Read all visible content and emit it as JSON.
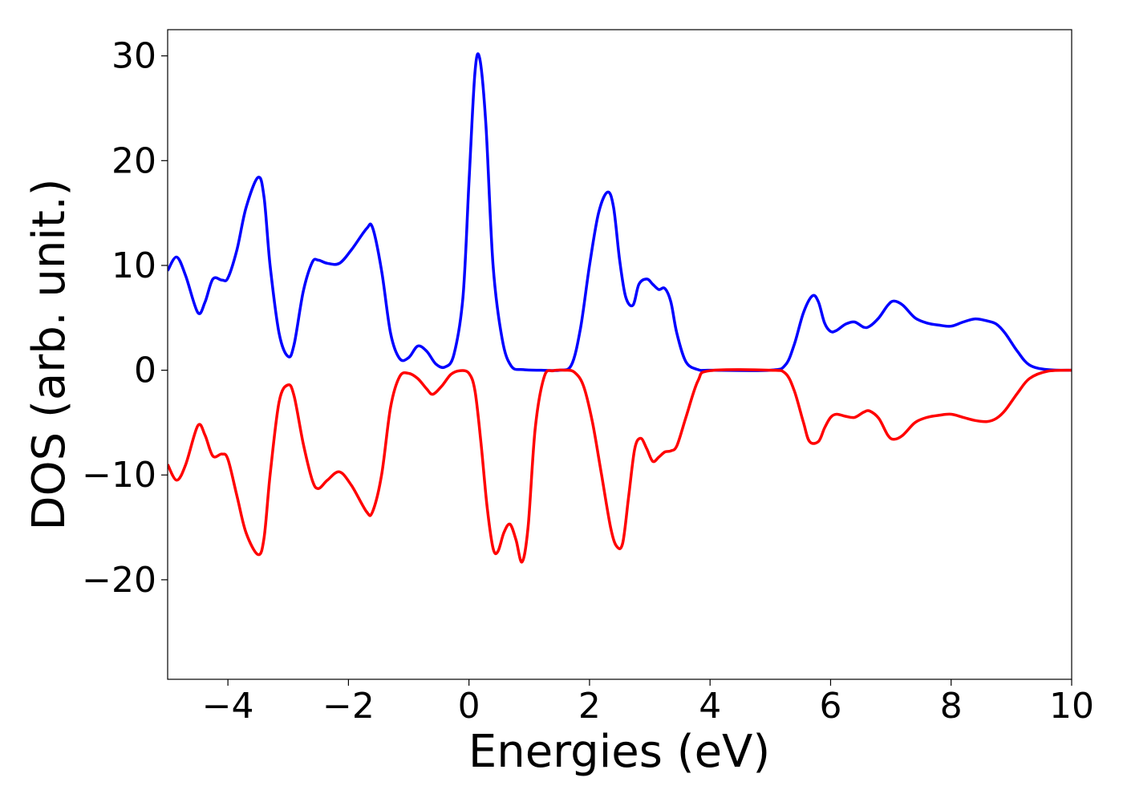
{
  "chart_data": {
    "type": "line",
    "title": "",
    "xlabel": "Energies (eV)",
    "ylabel": "DOS (arb. unit.)",
    "xlim": [
      -5,
      10
    ],
    "ylim": [
      -29.5,
      32.5
    ],
    "grid": false,
    "legend": "none",
    "x_ticks": [
      -4,
      -2,
      0,
      2,
      4,
      6,
      8,
      10
    ],
    "x_tick_labels": [
      "−4",
      "−2",
      "0",
      "2",
      "4",
      "6",
      "8",
      "10"
    ],
    "y_ticks": [
      -20,
      -10,
      0,
      10,
      20,
      30
    ],
    "y_tick_labels": [
      "−20",
      "−10",
      "0",
      "10",
      "20",
      "30"
    ],
    "series": [
      {
        "color": "#0000ff",
        "x": [
          -5.0,
          -4.85,
          -4.7,
          -4.5,
          -4.38,
          -4.25,
          -4.1,
          -4.0,
          -3.85,
          -3.7,
          -3.5,
          -3.4,
          -3.3,
          -3.15,
          -3.0,
          -2.9,
          -2.75,
          -2.6,
          -2.5,
          -2.35,
          -2.15,
          -1.95,
          -1.7,
          -1.6,
          -1.45,
          -1.3,
          -1.15,
          -1.0,
          -0.85,
          -0.7,
          -0.55,
          -0.4,
          -0.25,
          -0.1,
          0.0,
          0.1,
          0.18,
          0.28,
          0.4,
          0.55,
          0.7,
          0.9,
          1.2,
          1.5,
          1.7,
          1.85,
          2.0,
          2.15,
          2.3,
          2.4,
          2.5,
          2.6,
          2.72,
          2.82,
          2.95,
          3.05,
          3.15,
          3.25,
          3.35,
          3.45,
          3.6,
          3.8,
          4.0,
          5.0,
          5.25,
          5.4,
          5.55,
          5.7,
          5.8,
          5.9,
          6.0,
          6.1,
          6.25,
          6.4,
          6.55,
          6.65,
          6.8,
          6.95,
          7.05,
          7.2,
          7.4,
          7.6,
          7.8,
          8.0,
          8.2,
          8.4,
          8.6,
          8.75,
          8.9,
          9.1,
          9.3,
          9.6,
          10.0
        ],
        "y": [
          9.5,
          10.8,
          9.0,
          5.5,
          6.5,
          8.7,
          8.6,
          8.8,
          11.5,
          15.5,
          18.4,
          16.5,
          10.0,
          3.5,
          1.3,
          2.5,
          7.5,
          10.3,
          10.5,
          10.2,
          10.2,
          11.5,
          13.5,
          13.6,
          9.5,
          3.5,
          1.1,
          1.2,
          2.3,
          1.8,
          0.6,
          0.3,
          1.5,
          7.0,
          18.0,
          28.5,
          29.7,
          23.5,
          10.0,
          3.0,
          0.4,
          0.05,
          0.0,
          0.0,
          0.5,
          4.0,
          10.0,
          15.0,
          17.0,
          15.5,
          10.5,
          7.0,
          6.2,
          8.2,
          8.7,
          8.2,
          7.7,
          7.8,
          6.5,
          3.5,
          0.8,
          0.05,
          0.0,
          0.0,
          0.5,
          2.5,
          5.5,
          7.1,
          6.5,
          4.5,
          3.7,
          3.8,
          4.4,
          4.6,
          4.1,
          4.2,
          5.0,
          6.2,
          6.6,
          6.2,
          5.0,
          4.5,
          4.3,
          4.2,
          4.6,
          4.9,
          4.7,
          4.4,
          3.5,
          1.8,
          0.5,
          0.05,
          0.0
        ]
      },
      {
        "color": "#ff0000",
        "x": [
          -5.0,
          -4.85,
          -4.7,
          -4.5,
          -4.38,
          -4.25,
          -4.1,
          -4.0,
          -3.85,
          -3.7,
          -3.5,
          -3.4,
          -3.3,
          -3.15,
          -3.0,
          -2.9,
          -2.75,
          -2.6,
          -2.5,
          -2.35,
          -2.15,
          -1.95,
          -1.7,
          -1.6,
          -1.45,
          -1.3,
          -1.15,
          -1.0,
          -0.85,
          -0.7,
          -0.6,
          -0.45,
          -0.3,
          -0.15,
          0.0,
          0.1,
          0.2,
          0.3,
          0.4,
          0.48,
          0.58,
          0.68,
          0.78,
          0.88,
          0.98,
          1.1,
          1.25,
          1.4,
          1.6,
          1.75,
          1.9,
          2.05,
          2.2,
          2.35,
          2.45,
          2.55,
          2.65,
          2.75,
          2.85,
          2.95,
          3.05,
          3.15,
          3.25,
          3.35,
          3.45,
          3.6,
          3.8,
          4.0,
          5.0,
          5.25,
          5.4,
          5.55,
          5.65,
          5.8,
          5.9,
          6.0,
          6.1,
          6.25,
          6.4,
          6.55,
          6.65,
          6.8,
          6.95,
          7.05,
          7.2,
          7.4,
          7.6,
          7.8,
          8.0,
          8.2,
          8.4,
          8.6,
          8.75,
          8.9,
          9.1,
          9.3,
          9.6,
          10.0
        ],
        "y": [
          -9.0,
          -10.5,
          -9.0,
          -5.3,
          -6.2,
          -8.2,
          -8.0,
          -8.5,
          -12.0,
          -15.5,
          -17.6,
          -16.0,
          -10.0,
          -3.0,
          -1.4,
          -2.5,
          -7.0,
          -10.5,
          -11.3,
          -10.5,
          -9.7,
          -11.0,
          -13.5,
          -13.5,
          -10.0,
          -3.5,
          -0.6,
          -0.3,
          -0.8,
          -1.8,
          -2.3,
          -1.5,
          -0.4,
          -0.05,
          -0.3,
          -2.0,
          -7.0,
          -13.0,
          -17.0,
          -17.3,
          -15.5,
          -14.7,
          -16.2,
          -18.3,
          -15.0,
          -5.5,
          -0.6,
          -0.05,
          0.0,
          -0.2,
          -1.5,
          -5.0,
          -10.0,
          -15.0,
          -16.8,
          -16.5,
          -12.0,
          -7.5,
          -6.5,
          -7.5,
          -8.7,
          -8.3,
          -7.8,
          -7.7,
          -7.2,
          -4.5,
          -1.0,
          -0.05,
          0.0,
          -0.3,
          -2.0,
          -5.0,
          -6.8,
          -6.8,
          -5.5,
          -4.5,
          -4.2,
          -4.4,
          -4.5,
          -4.0,
          -3.9,
          -4.6,
          -6.2,
          -6.6,
          -6.2,
          -5.0,
          -4.5,
          -4.3,
          -4.2,
          -4.5,
          -4.8,
          -4.9,
          -4.6,
          -3.8,
          -2.2,
          -0.8,
          -0.1,
          0.0
        ]
      }
    ]
  }
}
